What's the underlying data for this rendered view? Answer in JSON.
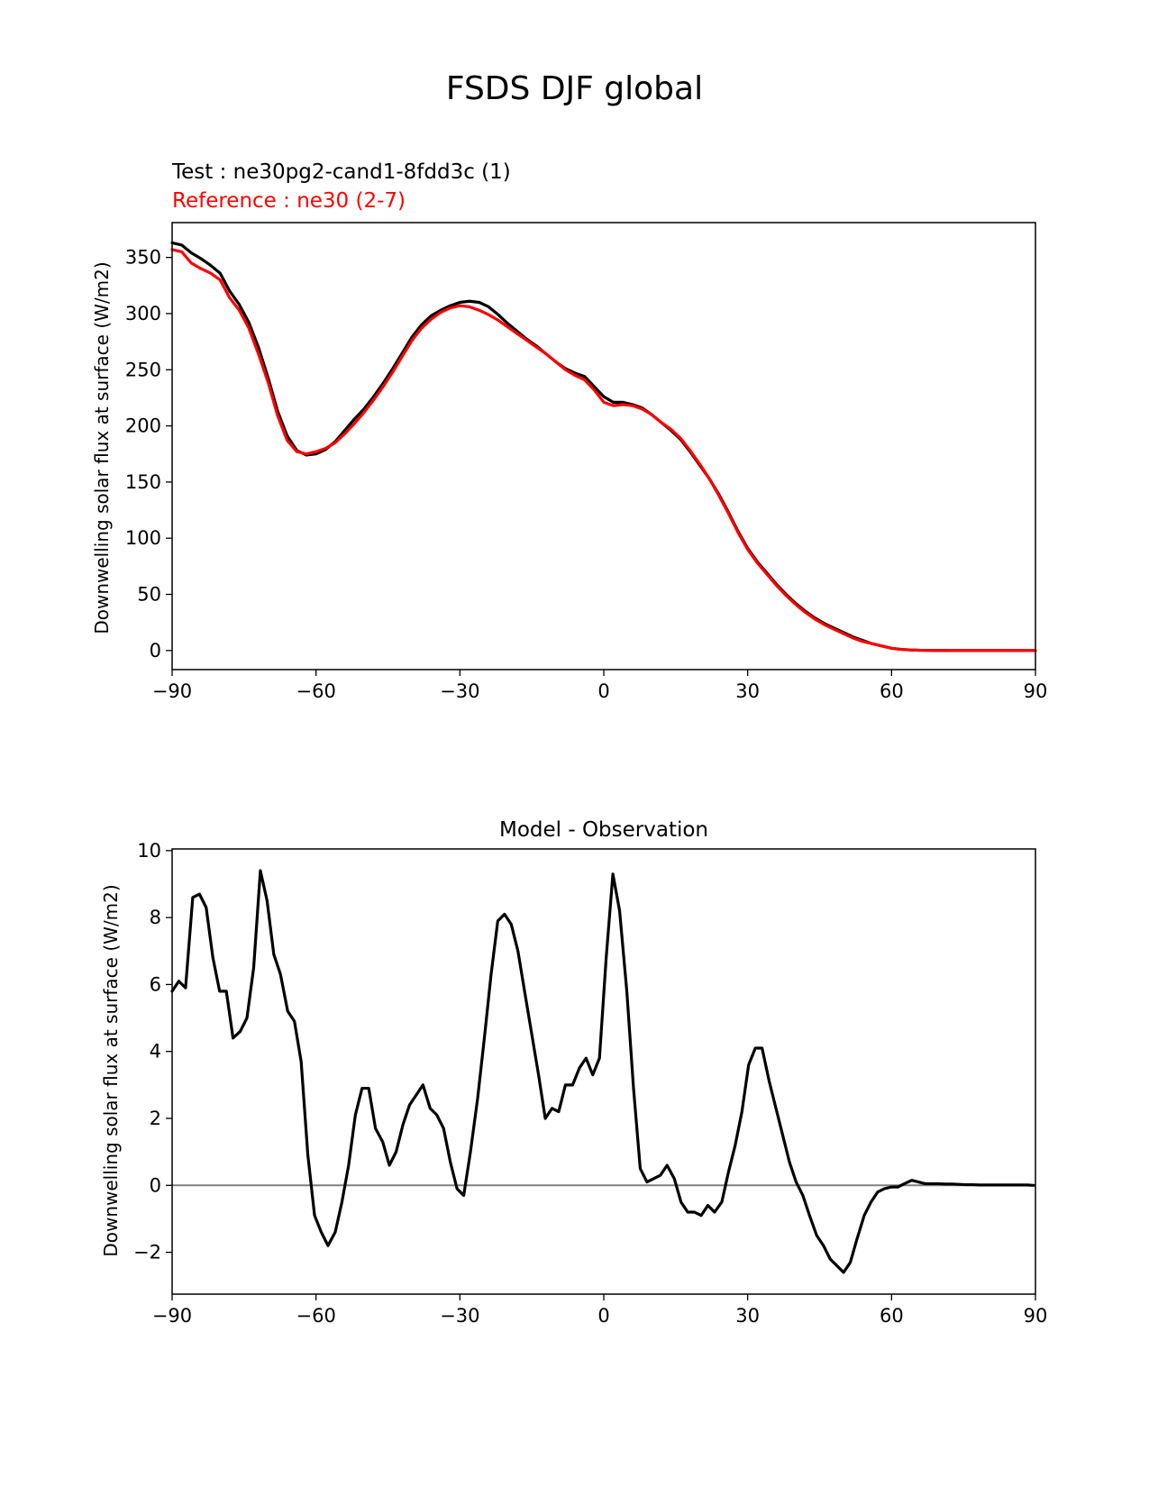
{
  "figure_title": "FSDS DJF global",
  "colors": {
    "test": "#000000",
    "reference": "#ff0000",
    "zero_line": "#808080"
  },
  "chart_data": [
    {
      "type": "line",
      "title": "",
      "legend_test": "Test : ne30pg2-cand1-8fdd3c (1)",
      "legend_reference": "Reference : ne30 (2-7)",
      "xlabel": "",
      "ylabel": "Downwelling solar flux at surface (W/m2)",
      "xlim": [
        -90,
        90
      ],
      "ylim": [
        -17,
        381
      ],
      "xticks": [
        -90,
        -60,
        -30,
        0,
        30,
        60,
        90
      ],
      "xtick_labels": [
        "−90",
        "−60",
        "−30",
        "0",
        "30",
        "60",
        "90"
      ],
      "yticks": [
        0,
        50,
        100,
        150,
        200,
        250,
        300,
        350
      ],
      "ytick_labels": [
        "0",
        "50",
        "100",
        "150",
        "200",
        "250",
        "300",
        "350"
      ],
      "series": [
        {
          "name": "Test : ne30pg2-cand1-8fdd3c (1)",
          "x": [
            -90,
            -88,
            -86,
            -84,
            -82,
            -80,
            -78,
            -76,
            -74,
            -72,
            -70,
            -68,
            -66,
            -64,
            -62,
            -60,
            -58,
            -56,
            -54,
            -52,
            -50,
            -48,
            -46,
            -44,
            -42,
            -40,
            -38,
            -36,
            -34,
            -32,
            -30,
            -28,
            -26,
            -24,
            -22,
            -20,
            -18,
            -16,
            -14,
            -12,
            -10,
            -8,
            -6,
            -4,
            -2,
            0,
            2,
            4,
            6,
            8,
            10,
            12,
            14,
            16,
            18,
            20,
            22,
            24,
            26,
            28,
            30,
            32,
            34,
            36,
            38,
            40,
            42,
            44,
            46,
            48,
            50,
            52,
            54,
            56,
            58,
            60,
            62,
            64,
            66,
            68,
            70,
            72,
            74,
            76,
            78,
            80,
            82,
            84,
            86,
            88,
            90
          ],
          "values": [
            363,
            361,
            354,
            349,
            343,
            336,
            320,
            308,
            292,
            270,
            243,
            213,
            191,
            178,
            174,
            175,
            179,
            186,
            196,
            206,
            215,
            226,
            238,
            251,
            265,
            279,
            290,
            298,
            303,
            307,
            310,
            311,
            310,
            306,
            299,
            291,
            284,
            277,
            271,
            264,
            257,
            251,
            247,
            244,
            235,
            226,
            221,
            221,
            219,
            216,
            210,
            203,
            196,
            188,
            177,
            165,
            153,
            139,
            123,
            106,
            91,
            79,
            69,
            59,
            50,
            42,
            35,
            29,
            24,
            20,
            16,
            12,
            9,
            6,
            4,
            2,
            1,
            0.5,
            0.2,
            0.1,
            0.05,
            0,
            0,
            0,
            0,
            0,
            0,
            0,
            0,
            0,
            0
          ]
        },
        {
          "name": "Reference : ne30 (2-7)",
          "x": [
            -90,
            -88,
            -86,
            -84,
            -82,
            -80,
            -78,
            -76,
            -74,
            -72,
            -70,
            -68,
            -66,
            -64,
            -62,
            -60,
            -58,
            -56,
            -54,
            -52,
            -50,
            -48,
            -46,
            -44,
            -42,
            -40,
            -38,
            -36,
            -34,
            -32,
            -30,
            -28,
            -26,
            -24,
            -22,
            -20,
            -18,
            -16,
            -14,
            -12,
            -10,
            -8,
            -6,
            -4,
            -2,
            0,
            2,
            4,
            6,
            8,
            10,
            12,
            14,
            16,
            18,
            20,
            22,
            24,
            26,
            28,
            30,
            32,
            34,
            36,
            38,
            40,
            42,
            44,
            46,
            48,
            50,
            52,
            54,
            56,
            58,
            60,
            62,
            64,
            66,
            68,
            70,
            72,
            74,
            76,
            78,
            80,
            82,
            84,
            86,
            88,
            90
          ],
          "values": [
            357,
            355,
            345,
            340,
            336,
            330,
            314,
            303,
            287,
            264,
            239,
            209,
            187,
            177,
            175,
            177,
            180,
            185,
            193,
            202,
            212,
            223,
            235,
            248,
            262,
            276,
            287,
            295,
            301,
            305,
            307,
            306,
            303,
            299,
            294,
            288,
            282,
            276,
            270,
            264,
            257,
            250,
            245,
            241,
            232,
            221,
            218,
            219,
            218,
            215,
            210,
            203,
            197,
            189,
            178,
            166,
            153,
            138,
            122,
            105,
            90,
            78,
            68,
            58,
            49,
            41,
            34,
            28,
            23,
            19,
            15,
            11,
            8,
            6,
            4,
            2,
            1,
            0.5,
            0.2,
            0.1,
            0.05,
            0,
            0,
            0,
            0,
            0,
            0,
            0,
            0,
            0,
            0
          ]
        }
      ]
    },
    {
      "type": "line",
      "title": "Model - Observation",
      "xlabel": "",
      "ylabel": "Downwelling solar flux at surface (W/m2)",
      "xlim": [
        -90,
        90
      ],
      "ylim": [
        -3.25,
        10.05
      ],
      "xticks": [
        -90,
        -60,
        -30,
        0,
        30,
        60,
        90
      ],
      "xtick_labels": [
        "−90",
        "−60",
        "−30",
        "0",
        "30",
        "60",
        "90"
      ],
      "yticks": [
        -2,
        0,
        2,
        4,
        6,
        8,
        10
      ],
      "ytick_labels": [
        "−2",
        "0",
        "2",
        "4",
        "6",
        "8",
        "10"
      ],
      "zero_line": 0,
      "series": [
        {
          "name": "Model - Observation",
          "x": [
            -90.0,
            -88.6,
            -87.2,
            -85.7,
            -84.3,
            -82.9,
            -81.5,
            -80.1,
            -78.7,
            -77.3,
            -75.8,
            -74.4,
            -73.0,
            -71.6,
            -70.2,
            -68.8,
            -67.4,
            -65.9,
            -64.5,
            -63.1,
            -61.7,
            -60.3,
            -58.9,
            -57.5,
            -56.0,
            -54.6,
            -53.2,
            -51.8,
            -50.4,
            -49.0,
            -47.6,
            -46.1,
            -44.7,
            -43.3,
            -41.9,
            -40.5,
            -39.1,
            -37.7,
            -36.2,
            -34.8,
            -33.4,
            -32.0,
            -30.6,
            -29.2,
            -27.8,
            -26.3,
            -24.9,
            -23.5,
            -22.1,
            -20.7,
            -19.3,
            -17.9,
            -16.4,
            -15.0,
            -13.6,
            -12.2,
            -10.8,
            -9.4,
            -8.0,
            -6.5,
            -5.1,
            -3.7,
            -2.3,
            -0.9,
            0.5,
            1.9,
            3.3,
            4.8,
            6.2,
            7.6,
            9.0,
            10.4,
            11.8,
            13.2,
            14.7,
            16.1,
            17.5,
            18.9,
            20.3,
            21.7,
            23.1,
            24.6,
            26.0,
            27.4,
            28.8,
            30.2,
            31.6,
            33.0,
            34.5,
            35.9,
            37.3,
            38.7,
            40.1,
            41.5,
            42.9,
            44.4,
            45.8,
            47.2,
            48.6,
            50.0,
            51.4,
            52.8,
            54.3,
            55.7,
            57.1,
            58.5,
            59.9,
            61.3,
            62.7,
            64.2,
            65.6,
            67.0,
            68.4,
            69.8,
            71.2,
            72.6,
            74.1,
            75.5,
            76.9,
            78.3,
            79.7,
            81.1,
            82.5,
            84.0,
            85.4,
            86.8,
            88.2,
            89.6
          ],
          "values": [
            5.8,
            6.1,
            5.9,
            8.6,
            8.7,
            8.3,
            6.8,
            5.8,
            5.8,
            4.4,
            4.6,
            5.0,
            6.5,
            9.4,
            8.5,
            6.9,
            6.3,
            5.2,
            4.9,
            3.7,
            0.9,
            -0.9,
            -1.4,
            -1.8,
            -1.4,
            -0.5,
            0.6,
            2.1,
            2.9,
            2.9,
            1.7,
            1.3,
            0.6,
            1.0,
            1.8,
            2.4,
            2.7,
            3.0,
            2.3,
            2.1,
            1.7,
            0.7,
            -0.1,
            -0.3,
            1.0,
            2.6,
            4.4,
            6.3,
            7.9,
            8.1,
            7.8,
            7.0,
            5.7,
            4.5,
            3.3,
            2.0,
            2.3,
            2.2,
            3.0,
            3.0,
            3.5,
            3.8,
            3.3,
            3.8,
            6.8,
            9.3,
            8.2,
            5.8,
            2.9,
            0.5,
            0.1,
            0.2,
            0.3,
            0.6,
            0.2,
            -0.5,
            -0.8,
            -0.8,
            -0.9,
            -0.6,
            -0.8,
            -0.5,
            0.4,
            1.2,
            2.2,
            3.6,
            4.1,
            4.1,
            3.1,
            2.3,
            1.5,
            0.7,
            0.1,
            -0.3,
            -0.9,
            -1.5,
            -1.8,
            -2.2,
            -2.4,
            -2.6,
            -2.3,
            -1.6,
            -0.9,
            -0.5,
            -0.2,
            -0.1,
            -0.05,
            -0.05,
            0.05,
            0.15,
            0.1,
            0.05,
            0.05,
            0.05,
            0.04,
            0.04,
            0.03,
            0.02,
            0.02,
            0.01,
            0.01,
            0.01,
            0.01,
            0.01,
            0.01,
            0.01,
            0.01,
            0.0
          ]
        }
      ]
    }
  ]
}
